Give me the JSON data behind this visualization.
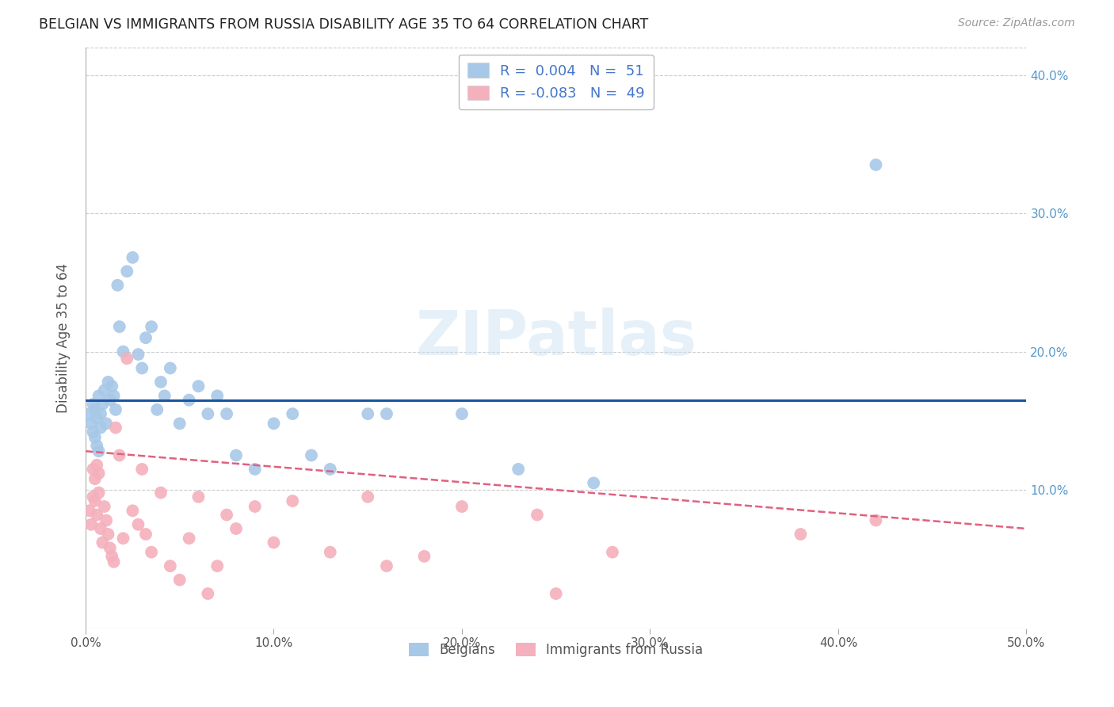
{
  "title": "BELGIAN VS IMMIGRANTS FROM RUSSIA DISABILITY AGE 35 TO 64 CORRELATION CHART",
  "source": "Source: ZipAtlas.com",
  "ylabel": "Disability Age 35 to 64",
  "xlim": [
    0.0,
    0.5
  ],
  "ylim": [
    0.0,
    0.42
  ],
  "xticks": [
    0.0,
    0.1,
    0.2,
    0.3,
    0.4,
    0.5
  ],
  "yticks": [
    0.1,
    0.2,
    0.3,
    0.4
  ],
  "xtick_labels": [
    "0.0%",
    "10.0%",
    "20.0%",
    "30.0%",
    "40.0%",
    "50.0%"
  ],
  "ytick_labels": [
    "10.0%",
    "20.0%",
    "30.0%",
    "40.0%"
  ],
  "belgian_R": 0.004,
  "russian_R": -0.083,
  "belgian_N": 51,
  "russian_N": 49,
  "watermark": "ZIPatlas",
  "belgian_color": "#a8c8e8",
  "russian_color": "#f4b0bc",
  "trendline_belgian_color": "#1a56a0",
  "trendline_russian_color": "#e06080",
  "belgian_trendline": [
    0.165,
    0.165
  ],
  "russian_trendline_start": 0.128,
  "russian_trendline_end": 0.072,
  "belgians_x": [
    0.002,
    0.003,
    0.004,
    0.004,
    0.005,
    0.005,
    0.006,
    0.006,
    0.007,
    0.007,
    0.008,
    0.008,
    0.009,
    0.01,
    0.011,
    0.012,
    0.013,
    0.014,
    0.015,
    0.016,
    0.017,
    0.018,
    0.02,
    0.022,
    0.025,
    0.028,
    0.03,
    0.032,
    0.035,
    0.038,
    0.04,
    0.042,
    0.045,
    0.05,
    0.055,
    0.06,
    0.065,
    0.07,
    0.075,
    0.08,
    0.09,
    0.1,
    0.11,
    0.12,
    0.13,
    0.15,
    0.16,
    0.2,
    0.23,
    0.27,
    0.42
  ],
  "belgians_y": [
    0.155,
    0.148,
    0.162,
    0.142,
    0.158,
    0.138,
    0.152,
    0.132,
    0.168,
    0.128,
    0.145,
    0.155,
    0.162,
    0.172,
    0.148,
    0.178,
    0.165,
    0.175,
    0.168,
    0.158,
    0.248,
    0.218,
    0.2,
    0.258,
    0.268,
    0.198,
    0.188,
    0.21,
    0.218,
    0.158,
    0.178,
    0.168,
    0.188,
    0.148,
    0.165,
    0.175,
    0.155,
    0.168,
    0.155,
    0.125,
    0.115,
    0.148,
    0.155,
    0.125,
    0.115,
    0.155,
    0.155,
    0.155,
    0.115,
    0.105,
    0.335
  ],
  "russians_x": [
    0.002,
    0.003,
    0.004,
    0.004,
    0.005,
    0.005,
    0.006,
    0.006,
    0.007,
    0.007,
    0.008,
    0.009,
    0.01,
    0.011,
    0.012,
    0.013,
    0.014,
    0.015,
    0.016,
    0.018,
    0.02,
    0.022,
    0.025,
    0.028,
    0.03,
    0.032,
    0.035,
    0.04,
    0.045,
    0.05,
    0.055,
    0.06,
    0.065,
    0.07,
    0.075,
    0.08,
    0.09,
    0.1,
    0.11,
    0.13,
    0.15,
    0.16,
    0.18,
    0.2,
    0.24,
    0.25,
    0.28,
    0.38,
    0.42
  ],
  "russians_y": [
    0.085,
    0.075,
    0.115,
    0.095,
    0.108,
    0.092,
    0.118,
    0.082,
    0.098,
    0.112,
    0.072,
    0.062,
    0.088,
    0.078,
    0.068,
    0.058,
    0.052,
    0.048,
    0.145,
    0.125,
    0.065,
    0.195,
    0.085,
    0.075,
    0.115,
    0.068,
    0.055,
    0.098,
    0.045,
    0.035,
    0.065,
    0.095,
    0.025,
    0.045,
    0.082,
    0.072,
    0.088,
    0.062,
    0.092,
    0.055,
    0.095,
    0.045,
    0.052,
    0.088,
    0.082,
    0.025,
    0.055,
    0.068,
    0.078
  ]
}
